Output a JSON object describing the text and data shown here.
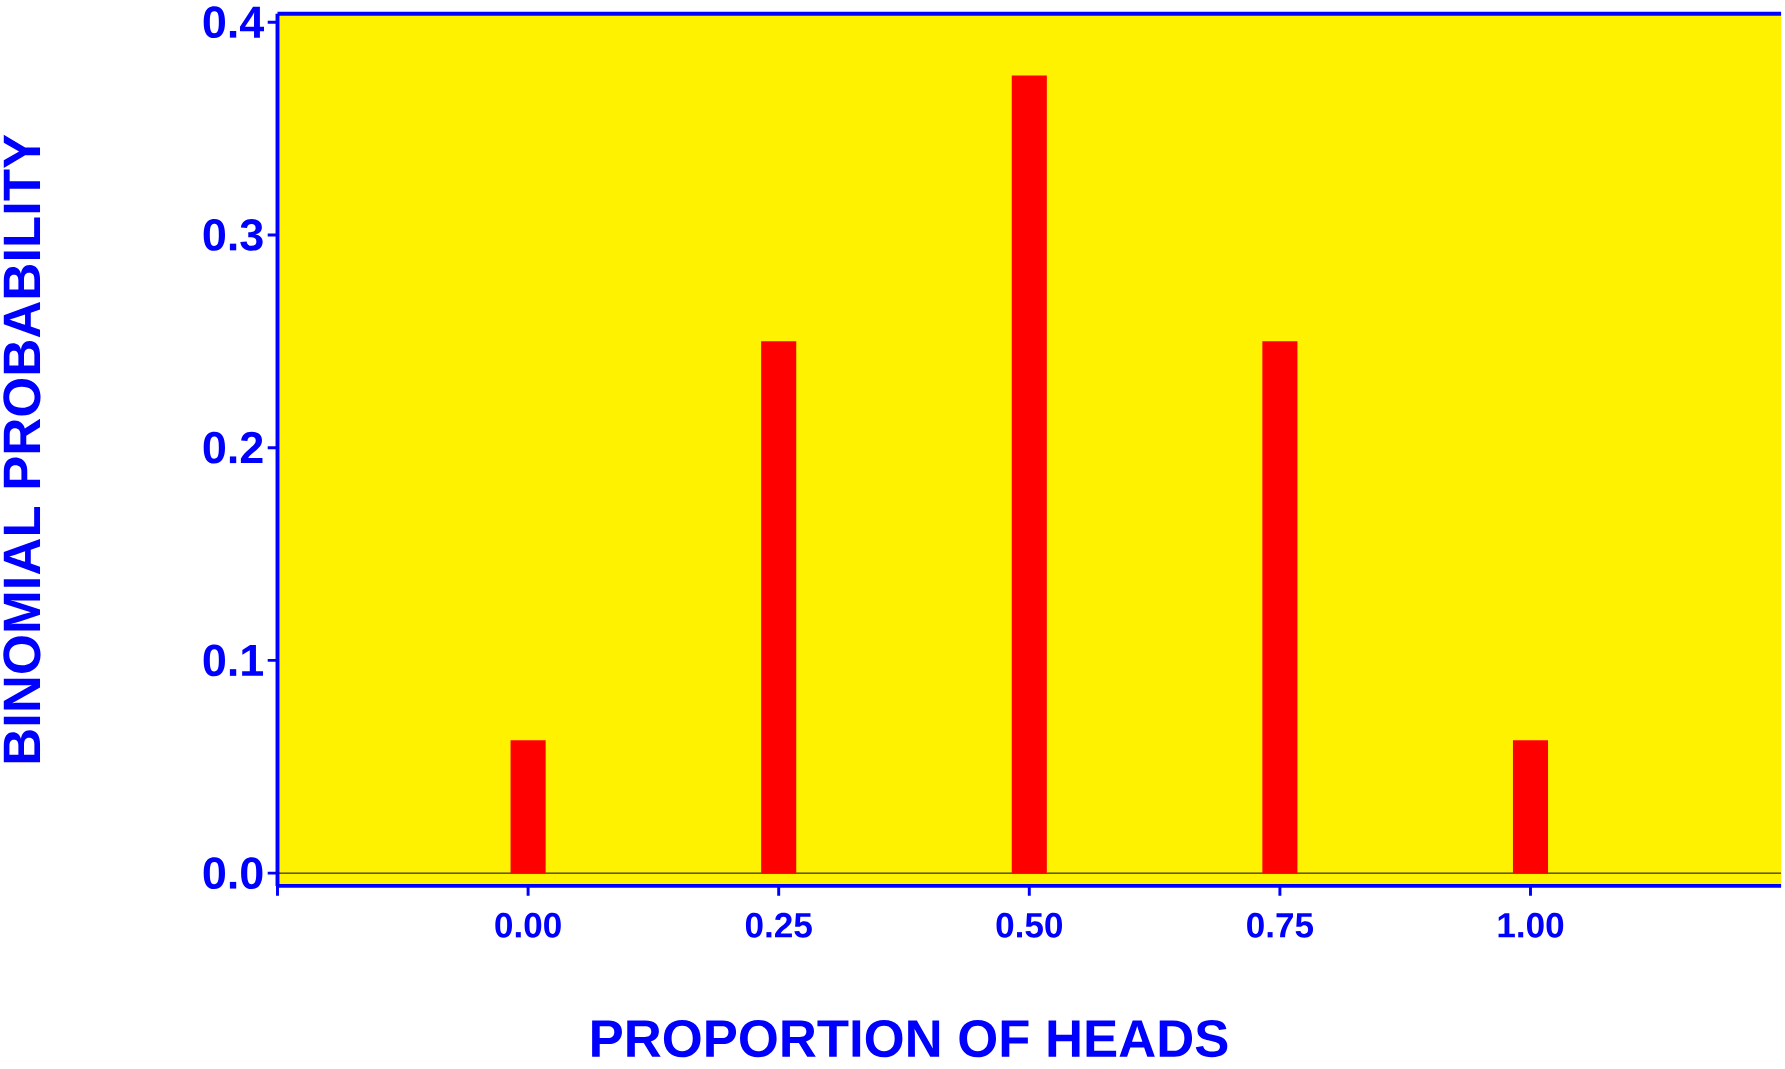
{
  "chart_data": {
    "type": "bar",
    "xlabel": "PROPORTION OF HEADS",
    "ylabel": "BINOMIAL PROBABILITY",
    "x": [
      0,
      0.25,
      0.5,
      0.75,
      1
    ],
    "values": [
      0.0625,
      0.25,
      0.375,
      0.25,
      0.0625
    ],
    "color": "#ff0000",
    "xlim": [
      -0.25,
      1.25
    ],
    "xticks": [
      {
        "value": -0.25,
        "label": null
      },
      {
        "value": 0,
        "label": "0.00"
      },
      {
        "value": 0.25,
        "label": "0.25"
      },
      {
        "value": 0.5,
        "label": "0.50"
      },
      {
        "value": 0.75,
        "label": "0.75"
      },
      {
        "value": 1,
        "label": "1.00"
      }
    ],
    "ylim": [
      -0.006,
      0.404
    ],
    "yticks": [
      {
        "value": 0,
        "label": "0.0"
      },
      {
        "value": 0.1,
        "label": "0.1"
      },
      {
        "value": 0.2,
        "label": "0.2"
      },
      {
        "value": 0.3,
        "label": "0.3"
      },
      {
        "value": 0.4,
        "label": "0.4"
      }
    ],
    "ref_lines": [
      {
        "axis": "y",
        "value": 0,
        "color": "#000000"
      }
    ],
    "grid": false
  }
}
